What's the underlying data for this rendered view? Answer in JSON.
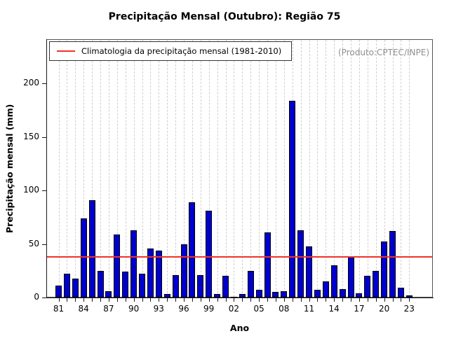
{
  "title": "Precipitação Mensal (Outubro): Região 75",
  "legend": {
    "label": "Climatologia da precipitação mensal (1981-2010)"
  },
  "watermark": "(Produto:CPTEC/INPE)",
  "chart_data": {
    "type": "bar",
    "title": "Precipitação Mensal (Outubro): Região 75",
    "xlabel": "Ano",
    "ylabel": "Precipitação mensal (mm)",
    "ylim": [
      0,
      230
    ],
    "yticks": [
      0,
      50,
      100,
      150,
      200
    ],
    "xtick_labels": [
      "81",
      "84",
      "87",
      "90",
      "93",
      "96",
      "99",
      "02",
      "05",
      "08",
      "11",
      "14",
      "17",
      "20",
      "23"
    ],
    "categories": [
      1981,
      1982,
      1983,
      1984,
      1985,
      1986,
      1987,
      1988,
      1989,
      1990,
      1991,
      1992,
      1993,
      1994,
      1995,
      1996,
      1997,
      1998,
      1999,
      2000,
      2001,
      2002,
      2003,
      2004,
      2005,
      2006,
      2007,
      2008,
      2009,
      2010,
      2011,
      2012,
      2013,
      2014,
      2015,
      2016,
      2017,
      2018,
      2019,
      2020,
      2021,
      2022,
      2023
    ],
    "values": [
      11,
      22,
      18,
      74,
      91,
      25,
      6,
      59,
      24,
      63,
      22,
      46,
      44,
      3,
      21,
      50,
      89,
      21,
      81,
      3,
      20,
      1,
      3,
      25,
      7,
      61,
      5,
      6,
      184,
      63,
      48,
      7,
      15,
      30,
      8,
      38,
      4,
      20,
      25,
      52,
      62,
      9,
      2
    ],
    "climatology_line": 38,
    "bar_color": "#0000cd",
    "bar_border_color": "#000000",
    "line_color": "#ee3328",
    "grid": "vertical-dashed",
    "legend_position": "top-left"
  }
}
